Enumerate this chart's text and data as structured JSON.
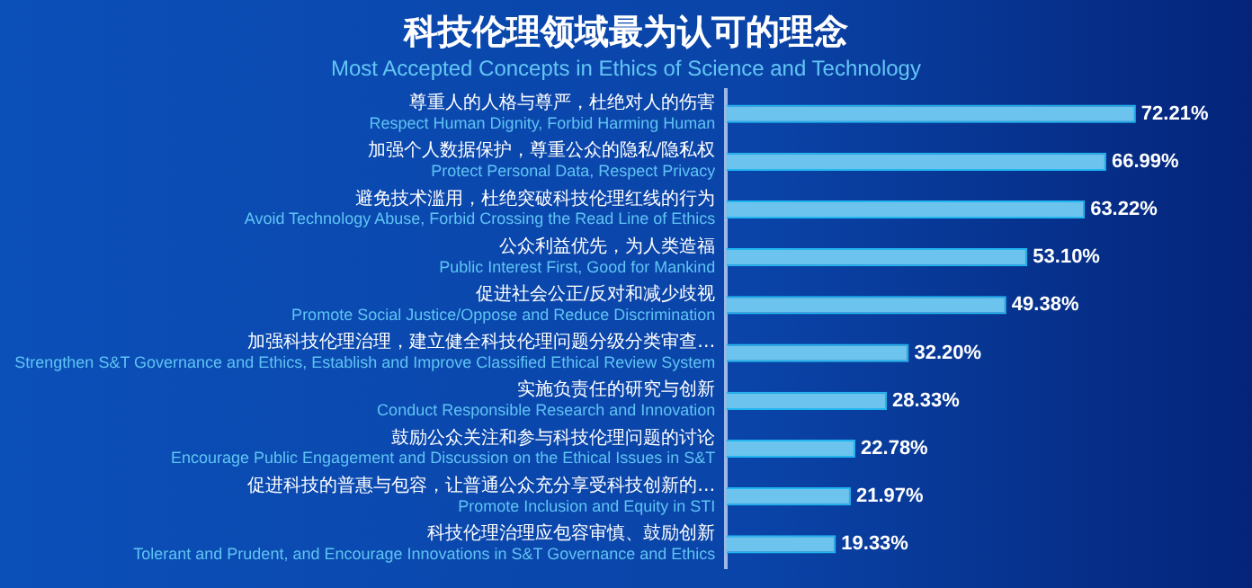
{
  "chart_data": {
    "type": "bar",
    "orientation": "horizontal",
    "title": "科技伦理领域最为认可的理念",
    "subtitle": "Most Accepted Concepts in Ethics of Science and Technology",
    "categories": [
      "尊重人的人格与尊严，杜绝对人的伤害\nRespect Human Dignity, Forbid Harming Human",
      "加强个人数据保护，尊重公众的隐私/隐私权\nProtect Personal Data, Respect Privacy",
      "避免技术滥用，杜绝突破科技伦理红线的行为\nAvoid Technology Abuse, Forbid Crossing the Read Line of Ethics",
      "公众利益优先，为人类造福\nPublic Interest First, Good for Mankind",
      "促进社会公正/反对和减少歧视\nPromote Social Justice/Oppose and Reduce Discrimination",
      "加强科技伦理治理，建立健全科技伦理问题分级分类审查…\nStrengthen S&T Governance and Ethics, Establish and Improve Classified Ethical Review System",
      "实施负责任的研究与创新\nConduct Responsible Research and Innovation",
      "鼓励公众关注和参与科技伦理问题的讨论\nEncourage Public Engagement and Discussion on the Ethical Issues in S&T",
      "促进科技的普惠与包容，让普通公众充分享受科技创新的…\nPromote Inclusion and Equity in STI",
      "科技伦理治理应包容审慎、鼓励创新\nTolerant and Prudent, and Encourage Innovations in S&T Governance and Ethics"
    ],
    "values": [
      72.21,
      66.99,
      63.22,
      53.1,
      49.38,
      32.2,
      28.33,
      22.78,
      21.97,
      19.33
    ],
    "value_labels": [
      "72.21%",
      "66.99%",
      "63.22%",
      "53.10%",
      "49.38%",
      "32.20%",
      "28.33%",
      "22.78%",
      "21.97%",
      "19.33%"
    ],
    "color": "#6cc4ee",
    "grid": false,
    "legend": false,
    "tick_labels": "y"
  }
}
